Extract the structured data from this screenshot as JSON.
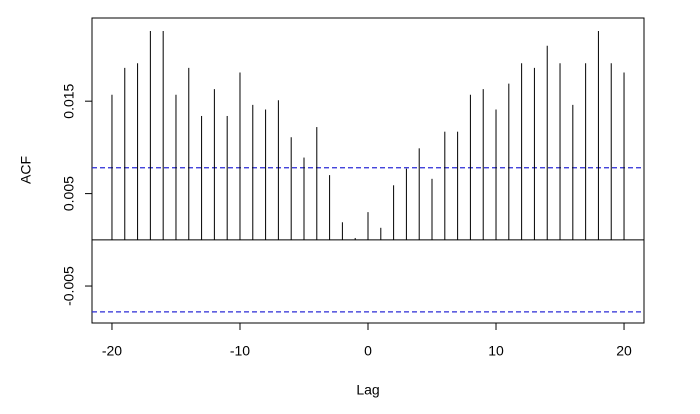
{
  "chart_data": {
    "type": "acf",
    "x_label": "Lag",
    "y_label": "ACF",
    "x": [
      -20,
      -19,
      -18,
      -17,
      -16,
      -15,
      -14,
      -13,
      -12,
      -11,
      -10,
      -9,
      -8,
      -7,
      -6,
      -5,
      -4,
      -3,
      -2,
      -1,
      0,
      1,
      2,
      3,
      4,
      5,
      6,
      7,
      8,
      9,
      10,
      11,
      12,
      13,
      14,
      15,
      16,
      17,
      18,
      19,
      20
    ],
    "values": [
      0.0157,
      0.0186,
      0.0191,
      0.0226,
      0.0226,
      0.0157,
      0.0186,
      0.0134,
      0.0163,
      0.0134,
      0.0181,
      0.0146,
      0.0141,
      0.0151,
      0.0111,
      0.0089,
      0.0122,
      0.007,
      0.0019,
      0.0002,
      0.003,
      0.0013,
      0.0059,
      0.0077,
      0.0099,
      0.0066,
      0.0117,
      0.0117,
      0.0157,
      0.0163,
      0.0141,
      0.0169,
      0.0191,
      0.0186,
      0.021,
      0.0191,
      0.0146,
      0.0191,
      0.0226,
      0.0191,
      0.0181
    ],
    "color": "#000000",
    "ci": [
      0.0078,
      -0.0078
    ],
    "ci_color": "#2b2bd6",
    "xlim": [
      -21.56,
      21.56
    ],
    "xticks": [
      -20,
      -10,
      0,
      10,
      20
    ],
    "ylim": [
      -0.009,
      0.024
    ],
    "yticks": [
      -0.005,
      0.005,
      0.015
    ],
    "grid": false
  }
}
